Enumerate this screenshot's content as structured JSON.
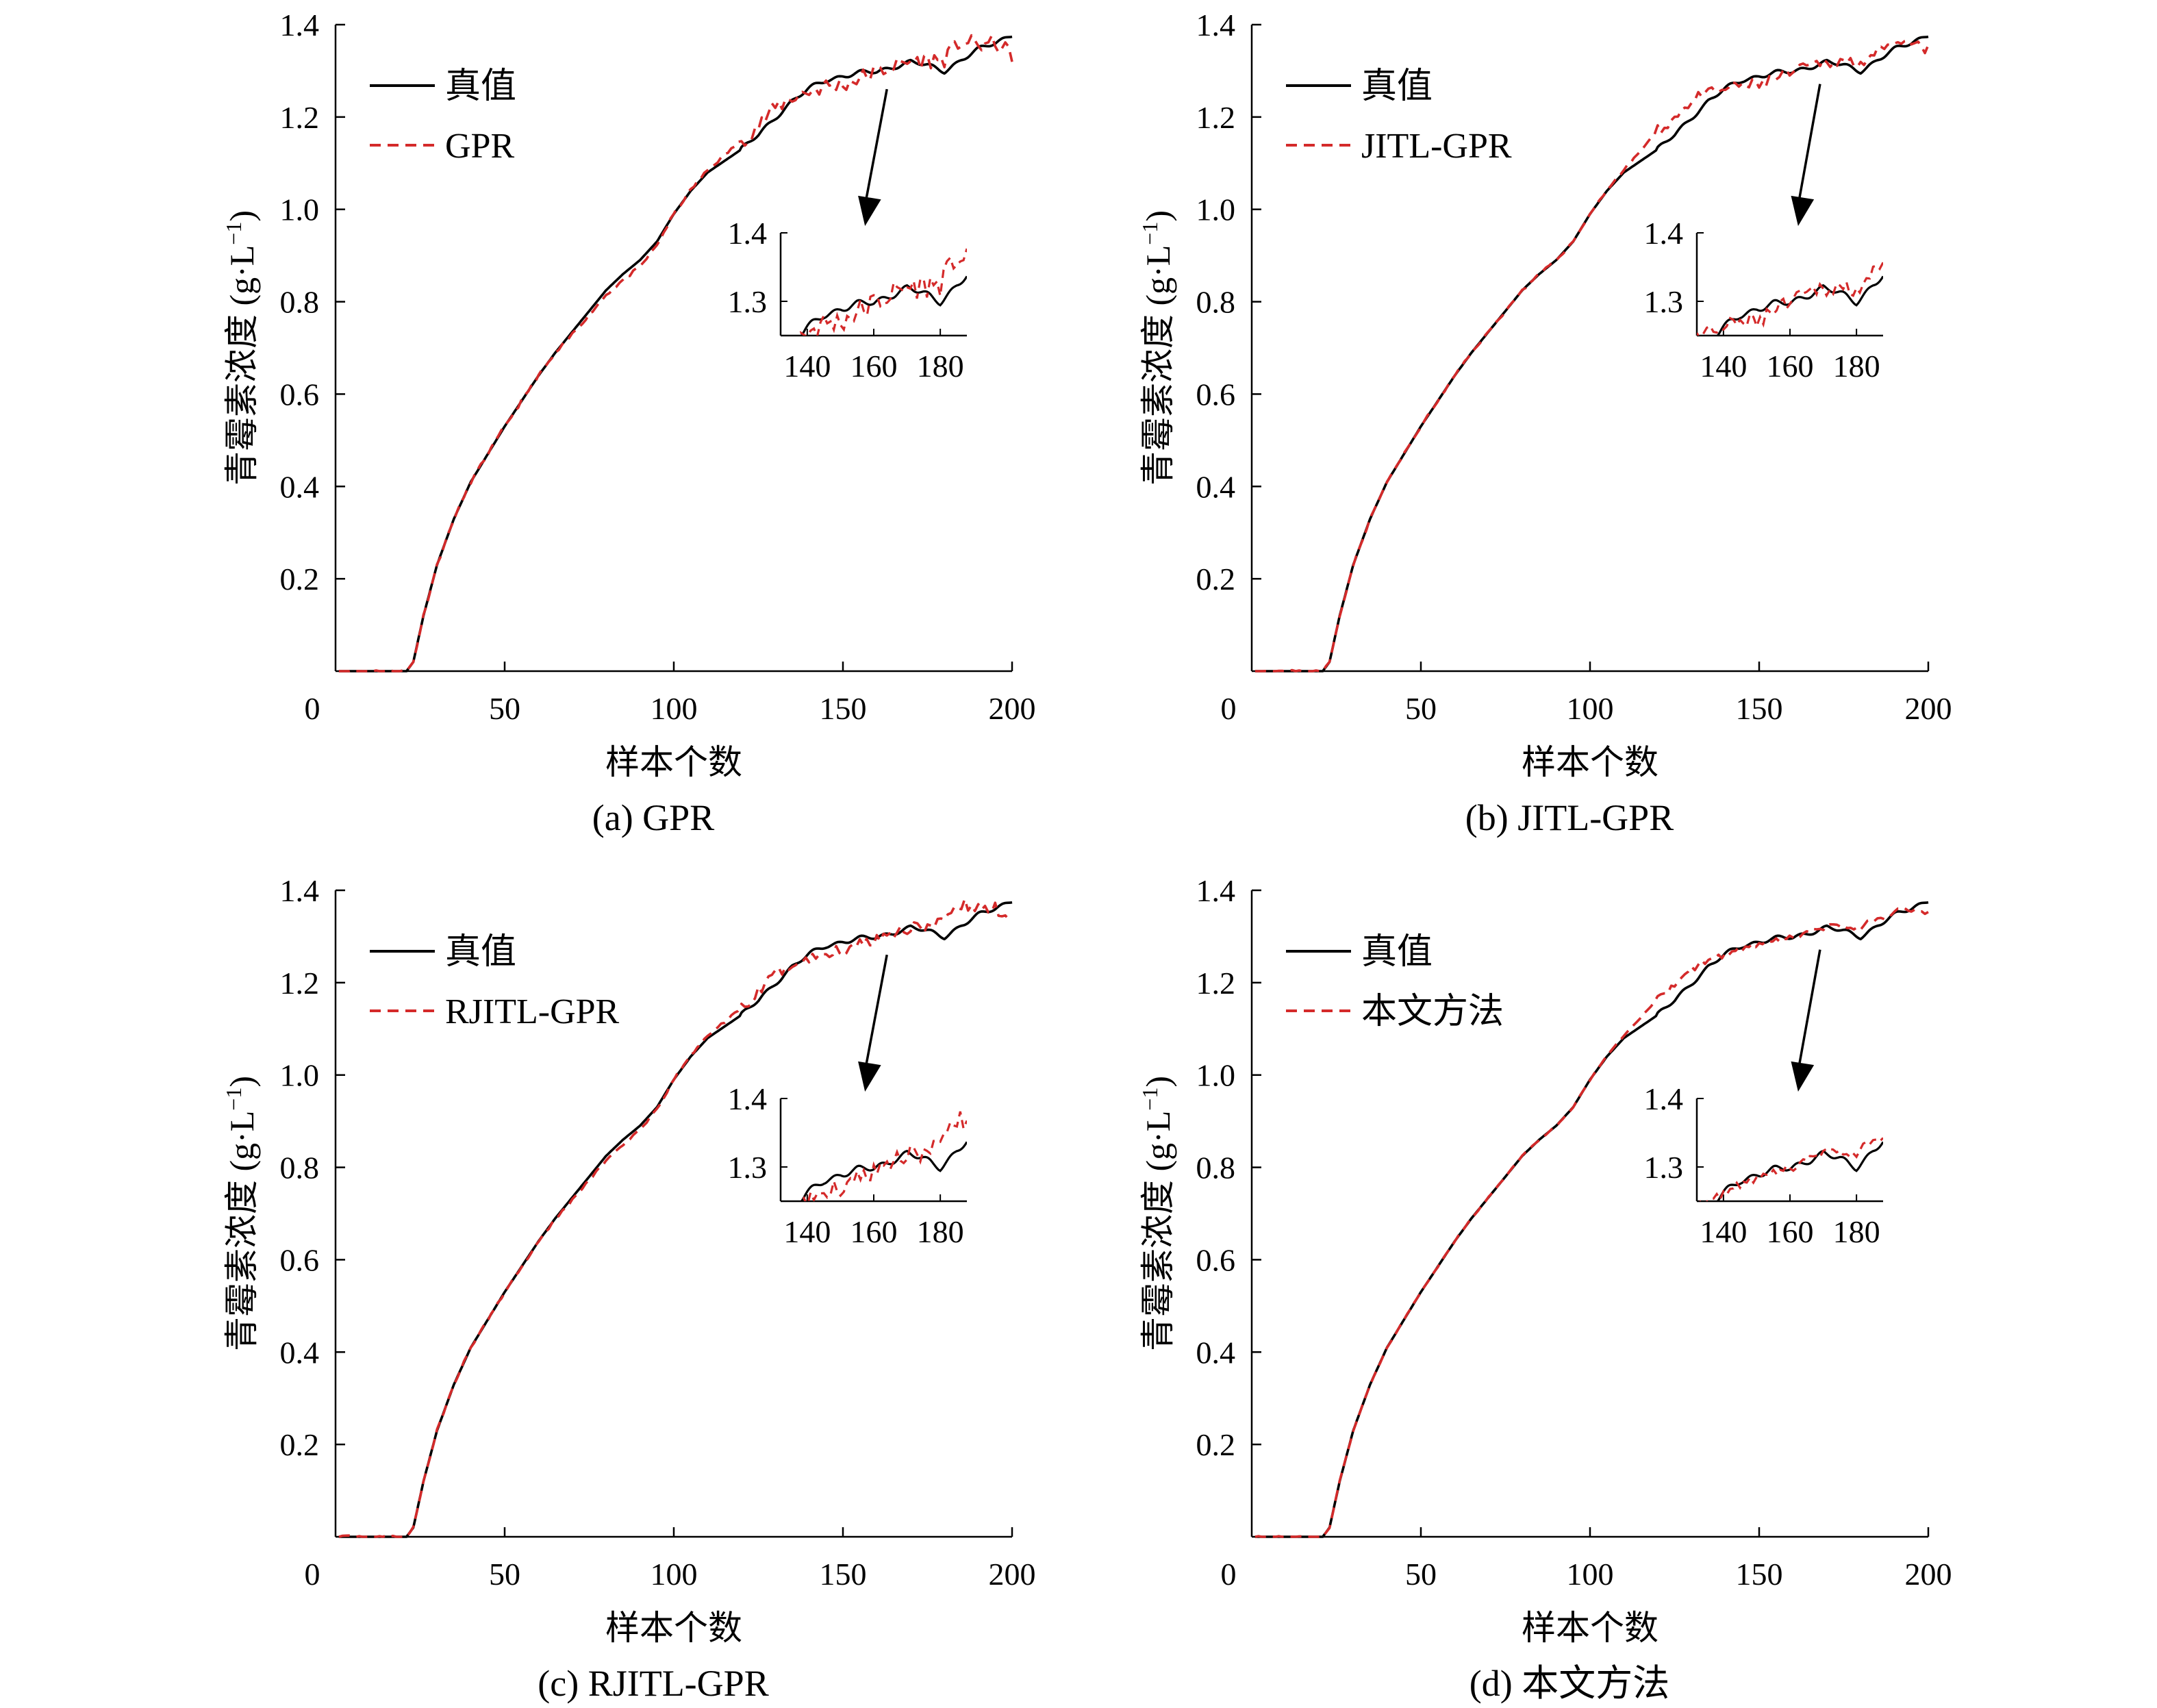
{
  "colors": {
    "true_line": "#000000",
    "pred_line": "#d42a2a",
    "axis": "#000000"
  },
  "chart_data": [
    {
      "type": "line",
      "caption": "(a) GPR",
      "xlabel": "样本个数",
      "ylabel_main": "青霉素浓度 (g·L",
      "ylabel_sup": "−1",
      "ylabel_close": ")",
      "xlim": [
        0,
        200
      ],
      "ylim": [
        0,
        1.4
      ],
      "xticks": [
        "0",
        "50",
        "100",
        "150",
        "200"
      ],
      "yticks": [
        "0.2",
        "0.4",
        "0.6",
        "0.8",
        "1.0",
        "1.2",
        "1.4"
      ],
      "legend": [
        "真值",
        "GPR"
      ],
      "series_names": [
        "真值",
        "GPR"
      ],
      "zoom_inset": {
        "xlim": [
          132,
          188
        ],
        "ylim": [
          1.25,
          1.4
        ],
        "xticks": [
          "140",
          "160",
          "180"
        ],
        "yticks": [
          "1.3",
          "1.4"
        ]
      },
      "arrow_from_x": 163,
      "anchors": [
        [
          0,
          0
        ],
        [
          21,
          0
        ],
        [
          23,
          0.02
        ],
        [
          26,
          0.12
        ],
        [
          30,
          0.23
        ],
        [
          35,
          0.33
        ],
        [
          40,
          0.41
        ],
        [
          45,
          0.47
        ],
        [
          50,
          0.53
        ],
        [
          55,
          0.585
        ],
        [
          60,
          0.64
        ],
        [
          65,
          0.69
        ],
        [
          70,
          0.735
        ],
        [
          75,
          0.78
        ],
        [
          80,
          0.825
        ],
        [
          85,
          0.86
        ],
        [
          90,
          0.89
        ],
        [
          95,
          0.93
        ],
        [
          100,
          0.99
        ],
        [
          105,
          1.04
        ],
        [
          110,
          1.08
        ],
        [
          115,
          1.105
        ],
        [
          120,
          1.13
        ],
        [
          125,
          1.16
        ],
        [
          130,
          1.2
        ],
        [
          135,
          1.235
        ],
        [
          140,
          1.26
        ],
        [
          145,
          1.28
        ],
        [
          150,
          1.29
        ],
        [
          155,
          1.295
        ],
        [
          160,
          1.297
        ],
        [
          165,
          1.31
        ],
        [
          170,
          1.32
        ],
        [
          175,
          1.31
        ],
        [
          180,
          1.3
        ],
        [
          185,
          1.325
        ],
        [
          190,
          1.345
        ],
        [
          195,
          1.36
        ],
        [
          200,
          1.38
        ]
      ],
      "pred_offset": [
        [
          0,
          0
        ],
        [
          60,
          0
        ],
        [
          80,
          -0.01
        ],
        [
          90,
          -0.015
        ],
        [
          100,
          0
        ],
        [
          110,
          0.005
        ],
        [
          120,
          0.02
        ],
        [
          130,
          0.02
        ],
        [
          140,
          -0.005
        ],
        [
          150,
          -0.02
        ],
        [
          160,
          0
        ],
        [
          170,
          0
        ],
        [
          178,
          0.02
        ],
        [
          185,
          0.04
        ],
        [
          190,
          0.01
        ],
        [
          195,
          0
        ],
        [
          200,
          -0.045
        ]
      ],
      "noise_amp": 0.018,
      "seed": 11
    },
    {
      "type": "line",
      "caption": "(b) JITL-GPR",
      "xlabel": "样本个数",
      "ylabel_main": "青霉素浓度 (g·L",
      "ylabel_sup": "−1",
      "ylabel_close": ")",
      "xlim": [
        0,
        200
      ],
      "ylim": [
        0,
        1.4
      ],
      "xticks": [
        "0",
        "50",
        "100",
        "150",
        "200"
      ],
      "yticks": [
        "0.2",
        "0.4",
        "0.6",
        "0.8",
        "1.0",
        "1.2",
        "1.4"
      ],
      "legend": [
        "真值",
        "JITL-GPR"
      ],
      "series_names": [
        "真值",
        "JITL-GPR"
      ],
      "zoom_inset": {
        "xlim": [
          132,
          188
        ],
        "ylim": [
          1.25,
          1.4
        ],
        "xticks": [
          "140",
          "160",
          "180"
        ],
        "yticks": [
          "1.3",
          "1.4"
        ]
      },
      "arrow_from_x": 168,
      "anchors": [
        [
          0,
          0
        ],
        [
          21,
          0
        ],
        [
          23,
          0.02
        ],
        [
          26,
          0.12
        ],
        [
          30,
          0.23
        ],
        [
          35,
          0.33
        ],
        [
          40,
          0.41
        ],
        [
          45,
          0.47
        ],
        [
          50,
          0.53
        ],
        [
          55,
          0.585
        ],
        [
          60,
          0.64
        ],
        [
          65,
          0.69
        ],
        [
          70,
          0.735
        ],
        [
          75,
          0.78
        ],
        [
          80,
          0.825
        ],
        [
          85,
          0.86
        ],
        [
          90,
          0.89
        ],
        [
          95,
          0.93
        ],
        [
          100,
          0.99
        ],
        [
          105,
          1.04
        ],
        [
          110,
          1.08
        ],
        [
          115,
          1.105
        ],
        [
          120,
          1.13
        ],
        [
          125,
          1.16
        ],
        [
          130,
          1.2
        ],
        [
          135,
          1.235
        ],
        [
          140,
          1.26
        ],
        [
          145,
          1.28
        ],
        [
          150,
          1.29
        ],
        [
          155,
          1.295
        ],
        [
          160,
          1.297
        ],
        [
          165,
          1.31
        ],
        [
          170,
          1.32
        ],
        [
          175,
          1.31
        ],
        [
          180,
          1.3
        ],
        [
          185,
          1.325
        ],
        [
          190,
          1.345
        ],
        [
          195,
          1.36
        ],
        [
          200,
          1.38
        ]
      ],
      "pred_offset": [
        [
          0,
          0
        ],
        [
          100,
          0
        ],
        [
          110,
          0.005
        ],
        [
          120,
          0.04
        ],
        [
          130,
          0.035
        ],
        [
          140,
          0
        ],
        [
          150,
          -0.02
        ],
        [
          160,
          0
        ],
        [
          170,
          0
        ],
        [
          180,
          0.02
        ],
        [
          188,
          0.01
        ],
        [
          195,
          0
        ],
        [
          200,
          -0.035
        ]
      ],
      "noise_amp": 0.012,
      "seed": 23
    },
    {
      "type": "line",
      "caption": "(c) RJITL-GPR",
      "xlabel": "样本个数",
      "ylabel_main": "青霉素浓度 (g·L",
      "ylabel_sup": "−1",
      "ylabel_close": ")",
      "xlim": [
        0,
        200
      ],
      "ylim": [
        0,
        1.4
      ],
      "xticks": [
        "0",
        "50",
        "100",
        "150",
        "200"
      ],
      "yticks": [
        "0.2",
        "0.4",
        "0.6",
        "0.8",
        "1.0",
        "1.2",
        "1.4"
      ],
      "legend": [
        "真值",
        "RJITL-GPR"
      ],
      "series_names": [
        "真值",
        "RJITL-GPR"
      ],
      "zoom_inset": {
        "xlim": [
          132,
          188
        ],
        "ylim": [
          1.25,
          1.4
        ],
        "xticks": [
          "140",
          "160",
          "180"
        ],
        "yticks": [
          "1.3",
          "1.4"
        ]
      },
      "arrow_from_x": 163,
      "anchors": [
        [
          0,
          0
        ],
        [
          21,
          0
        ],
        [
          23,
          0.02
        ],
        [
          26,
          0.12
        ],
        [
          30,
          0.23
        ],
        [
          35,
          0.33
        ],
        [
          40,
          0.41
        ],
        [
          45,
          0.47
        ],
        [
          50,
          0.53
        ],
        [
          55,
          0.585
        ],
        [
          60,
          0.64
        ],
        [
          65,
          0.69
        ],
        [
          70,
          0.735
        ],
        [
          75,
          0.78
        ],
        [
          80,
          0.825
        ],
        [
          85,
          0.86
        ],
        [
          90,
          0.89
        ],
        [
          95,
          0.93
        ],
        [
          100,
          0.99
        ],
        [
          105,
          1.04
        ],
        [
          110,
          1.08
        ],
        [
          115,
          1.105
        ],
        [
          120,
          1.13
        ],
        [
          125,
          1.16
        ],
        [
          130,
          1.2
        ],
        [
          135,
          1.235
        ],
        [
          140,
          1.26
        ],
        [
          145,
          1.28
        ],
        [
          150,
          1.29
        ],
        [
          155,
          1.295
        ],
        [
          160,
          1.297
        ],
        [
          165,
          1.31
        ],
        [
          170,
          1.32
        ],
        [
          175,
          1.31
        ],
        [
          180,
          1.3
        ],
        [
          185,
          1.325
        ],
        [
          190,
          1.345
        ],
        [
          195,
          1.36
        ],
        [
          200,
          1.38
        ]
      ],
      "pred_offset": [
        [
          0,
          0
        ],
        [
          60,
          0
        ],
        [
          80,
          -0.01
        ],
        [
          90,
          -0.01
        ],
        [
          100,
          0
        ],
        [
          110,
          0.005
        ],
        [
          120,
          0.015
        ],
        [
          130,
          0.02
        ],
        [
          140,
          -0.01
        ],
        [
          150,
          -0.02
        ],
        [
          160,
          0
        ],
        [
          170,
          0
        ],
        [
          178,
          0.02
        ],
        [
          185,
          0.045
        ],
        [
          190,
          0.015
        ],
        [
          195,
          0
        ],
        [
          200,
          -0.04
        ]
      ],
      "noise_amp": 0.014,
      "seed": 37
    },
    {
      "type": "line",
      "caption": "(d) 本文方法",
      "xlabel": "样本个数",
      "ylabel_main": "青霉素浓度 (g·L",
      "ylabel_sup": "−1",
      "ylabel_close": ")",
      "xlim": [
        0,
        200
      ],
      "ylim": [
        0,
        1.4
      ],
      "xticks": [
        "0",
        "50",
        "100",
        "150",
        "200"
      ],
      "yticks": [
        "0.2",
        "0.4",
        "0.6",
        "0.8",
        "1.0",
        "1.2",
        "1.4"
      ],
      "legend": [
        "真值",
        "本文方法"
      ],
      "series_names": [
        "真值",
        "本文方法"
      ],
      "zoom_inset": {
        "xlim": [
          132,
          188
        ],
        "ylim": [
          1.25,
          1.4
        ],
        "xticks": [
          "140",
          "160",
          "180"
        ],
        "yticks": [
          "1.3",
          "1.4"
        ]
      },
      "arrow_from_x": 168,
      "anchors": [
        [
          0,
          0
        ],
        [
          21,
          0
        ],
        [
          23,
          0.02
        ],
        [
          26,
          0.12
        ],
        [
          30,
          0.23
        ],
        [
          35,
          0.33
        ],
        [
          40,
          0.41
        ],
        [
          45,
          0.47
        ],
        [
          50,
          0.53
        ],
        [
          55,
          0.585
        ],
        [
          60,
          0.64
        ],
        [
          65,
          0.69
        ],
        [
          70,
          0.735
        ],
        [
          75,
          0.78
        ],
        [
          80,
          0.825
        ],
        [
          85,
          0.86
        ],
        [
          90,
          0.89
        ],
        [
          95,
          0.93
        ],
        [
          100,
          0.99
        ],
        [
          105,
          1.04
        ],
        [
          110,
          1.08
        ],
        [
          115,
          1.105
        ],
        [
          120,
          1.13
        ],
        [
          125,
          1.16
        ],
        [
          130,
          1.2
        ],
        [
          135,
          1.235
        ],
        [
          140,
          1.26
        ],
        [
          145,
          1.28
        ],
        [
          150,
          1.29
        ],
        [
          155,
          1.295
        ],
        [
          160,
          1.297
        ],
        [
          165,
          1.31
        ],
        [
          170,
          1.32
        ],
        [
          175,
          1.31
        ],
        [
          180,
          1.3
        ],
        [
          185,
          1.325
        ],
        [
          190,
          1.345
        ],
        [
          195,
          1.36
        ],
        [
          200,
          1.38
        ]
      ],
      "pred_offset": [
        [
          0,
          0
        ],
        [
          100,
          0
        ],
        [
          110,
          0.005
        ],
        [
          120,
          0.035
        ],
        [
          130,
          0.03
        ],
        [
          140,
          0
        ],
        [
          150,
          -0.01
        ],
        [
          160,
          0
        ],
        [
          170,
          0
        ],
        [
          180,
          0.02
        ],
        [
          188,
          0.01
        ],
        [
          195,
          0
        ],
        [
          200,
          -0.03
        ]
      ],
      "noise_amp": 0.007,
      "seed": 53
    }
  ]
}
